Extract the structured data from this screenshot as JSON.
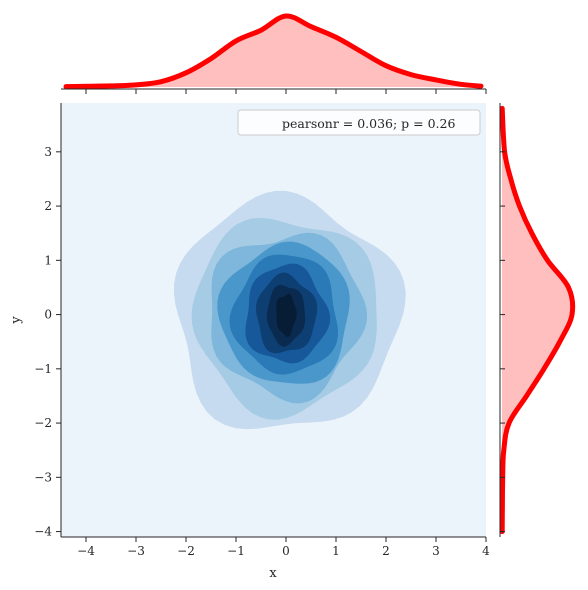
{
  "chart_data": {
    "type": "jointplot-kde",
    "title": "",
    "xlabel": "x",
    "ylabel": "y",
    "xlim": [
      -4.5,
      4.0
    ],
    "ylim": [
      -4.1,
      3.9
    ],
    "xticks": [
      -4,
      -3,
      -2,
      -1,
      0,
      1,
      2,
      3,
      4
    ],
    "yticks": [
      -4,
      -3,
      -2,
      -1,
      0,
      1,
      2,
      3
    ],
    "annotation": "pearsonr = 0.036; p = 0.26",
    "legend_position": "top-right",
    "grid": false,
    "joint_kde": {
      "colormap": "Blues",
      "background_color": "#ebf3fb",
      "center": [
        0.0,
        0.0
      ],
      "levels": [
        {
          "level": 1,
          "color": "#c6dbef",
          "rx": 2.25,
          "ry": 2.15
        },
        {
          "level": 2,
          "color": "#a5cce4",
          "rx": 1.85,
          "ry": 1.8
        },
        {
          "level": 3,
          "color": "#7fb6dc",
          "rx": 1.55,
          "ry": 1.5
        },
        {
          "level": 4,
          "color": "#4a98cb",
          "rx": 1.3,
          "ry": 1.3
        },
        {
          "level": 5,
          "color": "#2a7ab8",
          "rx": 1.05,
          "ry": 1.1
        },
        {
          "level": 6,
          "color": "#17589a",
          "rx": 0.82,
          "ry": 0.9
        },
        {
          "level": 7,
          "color": "#0e3f72",
          "rx": 0.6,
          "ry": 0.72
        },
        {
          "level": 8,
          "color": "#0a2a4f",
          "rx": 0.38,
          "ry": 0.55
        },
        {
          "level": 9,
          "color": "#071d36",
          "rx": 0.2,
          "ry": 0.38
        }
      ]
    },
    "marginal_x": {
      "color": "#ff0000",
      "fill_color": "#ffbfbf",
      "x": [
        -4.4,
        -3.5,
        -3.0,
        -2.5,
        -2.0,
        -1.5,
        -1.0,
        -0.5,
        0.0,
        0.5,
        1.0,
        1.5,
        2.0,
        2.5,
        3.0,
        3.5,
        3.9
      ],
      "density": [
        0.002,
        0.006,
        0.012,
        0.03,
        0.08,
        0.16,
        0.26,
        0.32,
        0.4,
        0.34,
        0.28,
        0.2,
        0.12,
        0.07,
        0.04,
        0.015,
        0.005
      ]
    },
    "marginal_y": {
      "color": "#ff0000",
      "fill_color": "#ffbfbf",
      "y": [
        3.8,
        3.0,
        2.5,
        2.0,
        1.5,
        1.0,
        0.5,
        0.0,
        -0.5,
        -1.0,
        -1.5,
        -2.0,
        -2.5,
        -3.0,
        -3.5,
        -4.0
      ],
      "density": [
        0.001,
        0.015,
        0.05,
        0.1,
        0.17,
        0.26,
        0.38,
        0.4,
        0.33,
        0.24,
        0.14,
        0.04,
        0.01,
        0.004,
        0.002,
        0.001
      ]
    }
  }
}
